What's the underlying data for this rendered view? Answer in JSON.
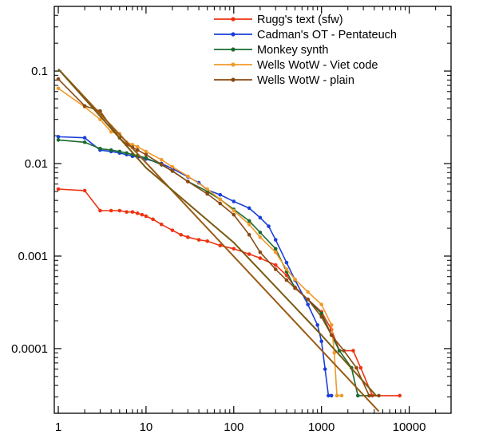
{
  "chart_data": {
    "type": "line",
    "title": "",
    "xlabel": "",
    "ylabel": "",
    "xscale": "log",
    "yscale": "log",
    "xlim": [
      0.9,
      30000
    ],
    "ylim": [
      2e-05,
      0.5
    ],
    "grid": false,
    "legend_position": "top-right",
    "x_ticks": [
      1,
      10,
      100,
      1000,
      10000
    ],
    "x_tick_labels": [
      "1",
      "10",
      "100",
      "1000",
      "10000"
    ],
    "y_ticks": [
      0.1,
      0.01,
      0.001,
      0.0001
    ],
    "y_tick_labels": [
      "0.1",
      "0.01",
      "0.001",
      "0.0001"
    ],
    "series": [
      {
        "name": "Rugg's text (sfw)",
        "color": "#ee3311",
        "points": [
          [
            1,
            0.0053
          ],
          [
            2,
            0.0051
          ],
          [
            3,
            0.0031
          ],
          [
            4,
            0.0031
          ],
          [
            5,
            0.0031
          ],
          [
            6,
            0.003
          ],
          [
            7,
            0.003
          ],
          [
            8,
            0.0029
          ],
          [
            9,
            0.0028
          ],
          [
            10,
            0.0027
          ],
          [
            12,
            0.0025
          ],
          [
            15,
            0.0022
          ],
          [
            20,
            0.0019
          ],
          [
            25,
            0.0017
          ],
          [
            30,
            0.0016
          ],
          [
            40,
            0.0015
          ],
          [
            50,
            0.00145
          ],
          [
            70,
            0.0013
          ],
          [
            100,
            0.0012
          ],
          [
            150,
            0.00105
          ],
          [
            200,
            0.00095
          ],
          [
            300,
            0.0008
          ],
          [
            400,
            0.00062
          ],
          [
            500,
            0.00046
          ],
          [
            700,
            0.00034
          ],
          [
            1000,
            0.00025
          ],
          [
            1300,
            0.00016
          ],
          [
            1600,
            9.5e-05
          ],
          [
            2300,
            9.5e-05
          ],
          [
            2800,
            6.2e-05
          ],
          [
            3800,
            3.1e-05
          ],
          [
            7800,
            3.1e-05
          ]
        ],
        "markers": true
      },
      {
        "name": "Cadman's OT - Pentateuch",
        "color": "#1a3fd8",
        "points": [
          [
            1,
            0.0195
          ],
          [
            2,
            0.019
          ],
          [
            3,
            0.014
          ],
          [
            4,
            0.0135
          ],
          [
            5,
            0.013
          ],
          [
            6,
            0.0125
          ],
          [
            7,
            0.012
          ],
          [
            8,
            0.0118
          ],
          [
            10,
            0.0112
          ],
          [
            15,
            0.01
          ],
          [
            20,
            0.0088
          ],
          [
            30,
            0.0072
          ],
          [
            40,
            0.0062
          ],
          [
            50,
            0.0052
          ],
          [
            70,
            0.0046
          ],
          [
            100,
            0.0039
          ],
          [
            150,
            0.0033
          ],
          [
            200,
            0.0026
          ],
          [
            250,
            0.0021
          ],
          [
            300,
            0.0015
          ],
          [
            400,
            0.00085
          ],
          [
            500,
            0.00055
          ],
          [
            700,
            0.0003
          ],
          [
            900,
            0.00018
          ],
          [
            1000,
            0.00012
          ],
          [
            1100,
            6e-05
          ],
          [
            1200,
            3.1e-05
          ],
          [
            1300,
            3.1e-05
          ]
        ],
        "markers": true
      },
      {
        "name": "Monkey synth",
        "color": "#1a6b2e",
        "points": [
          [
            1,
            0.018
          ],
          [
            2,
            0.017
          ],
          [
            3,
            0.0145
          ],
          [
            4,
            0.014
          ],
          [
            5,
            0.0135
          ],
          [
            6,
            0.013
          ],
          [
            7,
            0.0125
          ],
          [
            8,
            0.0122
          ],
          [
            10,
            0.0115
          ],
          [
            15,
            0.0097
          ],
          [
            20,
            0.0083
          ],
          [
            30,
            0.0064
          ],
          [
            50,
            0.005
          ],
          [
            70,
            0.0041
          ],
          [
            100,
            0.0032
          ],
          [
            150,
            0.0024
          ],
          [
            200,
            0.0018
          ],
          [
            300,
            0.0012
          ],
          [
            400,
            0.00068
          ],
          [
            500,
            0.00045
          ],
          [
            700,
            0.00034
          ],
          [
            1000,
            0.00024
          ],
          [
            1300,
            0.00014
          ],
          [
            1600,
            9.5e-05
          ],
          [
            2200,
            6.2e-05
          ],
          [
            2600,
            3.1e-05
          ],
          [
            3500,
            3.1e-05
          ]
        ],
        "markers": true
      },
      {
        "name": "Wells WotW - Viet code",
        "color": "#f09a2c",
        "points": [
          [
            1,
            0.065
          ],
          [
            2,
            0.041
          ],
          [
            3,
            0.03
          ],
          [
            4,
            0.022
          ],
          [
            5,
            0.021
          ],
          [
            6,
            0.017
          ],
          [
            7,
            0.016
          ],
          [
            8,
            0.0152
          ],
          [
            10,
            0.0135
          ],
          [
            15,
            0.011
          ],
          [
            20,
            0.0092
          ],
          [
            30,
            0.0073
          ],
          [
            50,
            0.0053
          ],
          [
            70,
            0.0041
          ],
          [
            100,
            0.0031
          ],
          [
            150,
            0.0022
          ],
          [
            200,
            0.0016
          ],
          [
            300,
            0.0011
          ],
          [
            400,
            0.00072
          ],
          [
            500,
            0.00056
          ],
          [
            700,
            0.00041
          ],
          [
            1000,
            0.0003
          ],
          [
            1300,
            0.00018
          ],
          [
            1400,
            9e-05
          ],
          [
            1500,
            3.1e-05
          ],
          [
            1700,
            3.1e-05
          ]
        ],
        "markers": true
      },
      {
        "name": "Wells WotW - plain",
        "color": "#8a4a12",
        "points": [
          [
            1,
            0.082
          ],
          [
            2,
            0.042
          ],
          [
            3,
            0.037
          ],
          [
            4,
            0.025
          ],
          [
            5,
            0.019
          ],
          [
            6,
            0.016
          ],
          [
            7,
            0.015
          ],
          [
            8,
            0.014
          ],
          [
            10,
            0.0125
          ],
          [
            15,
            0.0098
          ],
          [
            20,
            0.0083
          ],
          [
            30,
            0.0064
          ],
          [
            50,
            0.0047
          ],
          [
            70,
            0.0037
          ],
          [
            100,
            0.0028
          ],
          [
            150,
            0.0017
          ],
          [
            200,
            0.0011
          ],
          [
            300,
            0.00072
          ],
          [
            400,
            0.00055
          ],
          [
            500,
            0.00045
          ],
          [
            700,
            0.00034
          ],
          [
            1000,
            0.00022
          ],
          [
            1300,
            0.00014
          ],
          [
            1800,
            9.5e-05
          ],
          [
            2500,
            6.2e-05
          ],
          [
            3500,
            3.1e-05
          ],
          [
            4500,
            3.1e-05
          ]
        ],
        "markers": true
      },
      {
        "name": "",
        "color": "#9a5a14",
        "points": [
          [
            1,
            0.105
          ],
          [
            4500,
            2.1e-05
          ]
        ],
        "markers": false
      },
      {
        "name": "",
        "color": "#7a5a10",
        "points": [
          [
            1,
            0.105
          ],
          [
            10,
            0.009
          ],
          [
            100,
            0.0014
          ],
          [
            1000,
            0.00014
          ],
          [
            4200,
            3.1e-05
          ]
        ],
        "markers": false
      }
    ]
  }
}
